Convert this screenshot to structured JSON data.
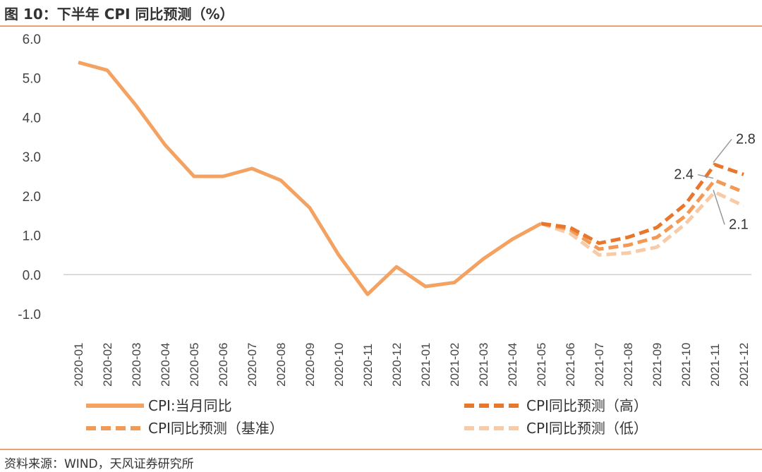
{
  "title": "图 10：下半年 CPI 同比预测（%）",
  "source": "资料来源：WIND，天风证券研究所",
  "chart_data": {
    "type": "line",
    "ylim": [
      -1.0,
      6.0
    ],
    "y_ticks": [
      "6.0",
      "5.0",
      "4.0",
      "3.0",
      "2.0",
      "1.0",
      "0.0",
      "-1.0"
    ],
    "y_tick_values": [
      6,
      5,
      4,
      3,
      2,
      1,
      0,
      -1
    ],
    "x": [
      "2020-01",
      "2020-02",
      "2020-03",
      "2020-04",
      "2020-05",
      "2020-06",
      "2020-07",
      "2020-08",
      "2020-09",
      "2020-10",
      "2020-11",
      "2020-12",
      "2021-01",
      "2021-02",
      "2021-03",
      "2021-04",
      "2021-05",
      "2021-06",
      "2021-07",
      "2021-08",
      "2021-09",
      "2021-10",
      "2021-11",
      "2021-12"
    ],
    "series": [
      {
        "name": "CPI:当月同比",
        "style": "solid",
        "color": "#f4a261",
        "values": [
          5.4,
          5.2,
          4.3,
          3.3,
          2.5,
          2.5,
          2.7,
          2.4,
          1.7,
          0.5,
          -0.5,
          0.2,
          -0.3,
          -0.2,
          0.4,
          0.9,
          1.3,
          null,
          null,
          null,
          null,
          null,
          null,
          null
        ]
      },
      {
        "name": "CPI同比预测（高）",
        "style": "dashed",
        "color": "#e8772e",
        "values": [
          null,
          null,
          null,
          null,
          null,
          null,
          null,
          null,
          null,
          null,
          null,
          null,
          null,
          null,
          null,
          null,
          1.3,
          1.2,
          0.8,
          0.95,
          1.2,
          1.8,
          2.8,
          2.55
        ]
      },
      {
        "name": "CPI同比预测（基准）",
        "style": "dashed",
        "color": "#f29a55",
        "values": [
          null,
          null,
          null,
          null,
          null,
          null,
          null,
          null,
          null,
          null,
          null,
          null,
          null,
          null,
          null,
          null,
          1.3,
          1.15,
          0.65,
          0.75,
          0.95,
          1.5,
          2.4,
          2.1
        ]
      },
      {
        "name": "CPI同比预测（低）",
        "style": "dashed",
        "color": "#f8cba8",
        "values": [
          null,
          null,
          null,
          null,
          null,
          null,
          null,
          null,
          null,
          null,
          null,
          null,
          null,
          null,
          null,
          null,
          1.3,
          1.05,
          0.5,
          0.55,
          0.7,
          1.3,
          2.1,
          1.75
        ]
      }
    ],
    "annotations": [
      {
        "text": "2.8",
        "series": 1,
        "index": 22
      },
      {
        "text": "2.4",
        "series": 2,
        "index": 22
      },
      {
        "text": "2.1",
        "series": 3,
        "index": 22
      }
    ],
    "legend_position": "bottom",
    "grid": false
  }
}
